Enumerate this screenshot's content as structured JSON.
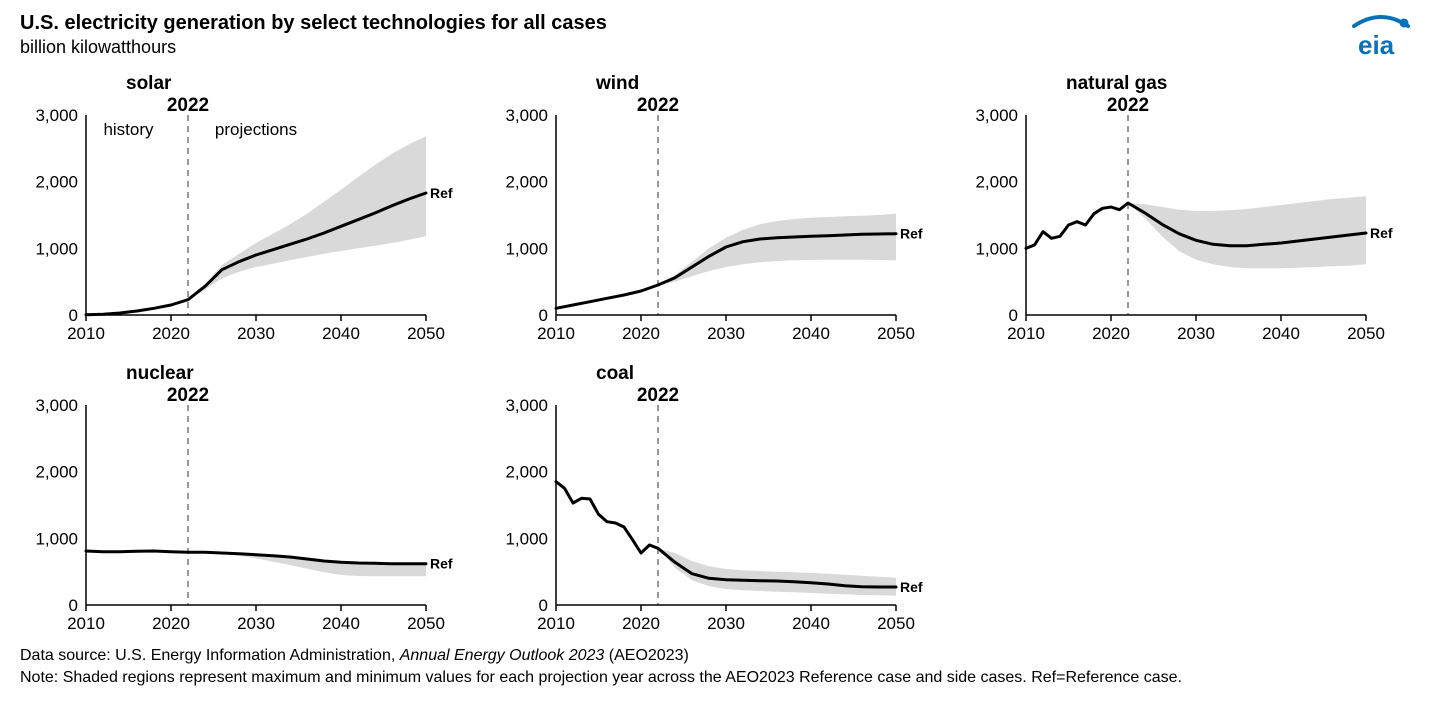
{
  "title": "U.S. electricity generation by select technologies for all cases",
  "subtitle": "billion kilowatthours",
  "source_prefix": "Data source: U.S. Energy Information Administration, ",
  "source_italic": "Annual Energy Outlook 2023",
  "source_suffix": " (AEO2023)",
  "note": "Note: Shaded regions represent maximum and minimum values for each projection year across the AEO2023 Reference case and side cases. Ref=Reference case.",
  "logo_text": "eia",
  "logo_color": "#0a70b8",
  "common": {
    "y_min": 0,
    "y_max": 3000,
    "y_ticks": [
      0,
      1000,
      2000,
      3000
    ],
    "y_tick_labels": [
      "0",
      "1,000",
      "2,000",
      "3,000"
    ],
    "x_min": 2010,
    "x_max": 2050,
    "x_ticks": [
      2010,
      2020,
      2030,
      2040,
      2050
    ],
    "marker_year": 2022,
    "marker_label": "2022",
    "ref_label": "Ref",
    "history_label": "history",
    "projections_label": "projections",
    "line_color": "#000000",
    "line_width": 3,
    "band_color": "#d9d9d9",
    "band_opacity": 1.0,
    "axis_color": "#000000",
    "axis_width": 1.5,
    "marker_color": "#999999",
    "marker_width": 2,
    "marker_dash": "6,5",
    "tick_font_size": 17,
    "title_font_size": 19,
    "panel_title_weight": "bold",
    "background_color": "#ffffff"
  },
  "panels": [
    {
      "id": "solar",
      "title": "solar",
      "show_hp_labels": true,
      "ref": {
        "x": [
          2010,
          2012,
          2014,
          2016,
          2018,
          2020,
          2022,
          2024,
          2026,
          2028,
          2030,
          2032,
          2034,
          2036,
          2038,
          2040,
          2042,
          2044,
          2046,
          2048,
          2050
        ],
        "y": [
          5,
          10,
          30,
          60,
          100,
          150,
          230,
          430,
          680,
          800,
          900,
          980,
          1060,
          1140,
          1230,
          1330,
          1430,
          1530,
          1640,
          1740,
          1830
        ]
      },
      "hi": {
        "x": [
          2022,
          2024,
          2026,
          2028,
          2030,
          2032,
          2034,
          2036,
          2038,
          2040,
          2042,
          2044,
          2046,
          2048,
          2050
        ],
        "y": [
          230,
          460,
          750,
          920,
          1080,
          1220,
          1360,
          1520,
          1700,
          1880,
          2070,
          2250,
          2420,
          2560,
          2680
        ]
      },
      "lo": {
        "x": [
          2022,
          2024,
          2026,
          2028,
          2030,
          2032,
          2034,
          2036,
          2038,
          2040,
          2042,
          2044,
          2046,
          2048,
          2050
        ],
        "y": [
          230,
          380,
          550,
          650,
          720,
          770,
          820,
          870,
          920,
          960,
          1000,
          1040,
          1080,
          1130,
          1180
        ]
      }
    },
    {
      "id": "wind",
      "title": "wind",
      "show_hp_labels": false,
      "ref": {
        "x": [
          2010,
          2012,
          2014,
          2016,
          2018,
          2020,
          2022,
          2024,
          2026,
          2028,
          2030,
          2032,
          2034,
          2036,
          2038,
          2040,
          2042,
          2044,
          2046,
          2048,
          2050
        ],
        "y": [
          100,
          150,
          200,
          250,
          300,
          360,
          450,
          560,
          720,
          880,
          1020,
          1100,
          1140,
          1160,
          1170,
          1180,
          1190,
          1200,
          1210,
          1215,
          1220
        ]
      },
      "hi": {
        "x": [
          2022,
          2024,
          2026,
          2028,
          2030,
          2032,
          2034,
          2036,
          2038,
          2040,
          2042,
          2044,
          2046,
          2048,
          2050
        ],
        "y": [
          450,
          600,
          800,
          1000,
          1160,
          1280,
          1360,
          1410,
          1440,
          1460,
          1470,
          1480,
          1490,
          1500,
          1520
        ]
      },
      "lo": {
        "x": [
          2022,
          2024,
          2026,
          2028,
          2030,
          2032,
          2034,
          2036,
          2038,
          2040,
          2042,
          2044,
          2046,
          2048,
          2050
        ],
        "y": [
          450,
          500,
          580,
          660,
          720,
          760,
          790,
          810,
          820,
          825,
          830,
          830,
          830,
          825,
          820
        ]
      }
    },
    {
      "id": "natgas",
      "title": "natural gas",
      "show_hp_labels": false,
      "ref": {
        "x": [
          2010,
          2011,
          2012,
          2013,
          2014,
          2015,
          2016,
          2017,
          2018,
          2019,
          2020,
          2021,
          2022,
          2024,
          2026,
          2028,
          2030,
          2032,
          2034,
          2036,
          2038,
          2040,
          2042,
          2044,
          2046,
          2048,
          2050
        ],
        "y": [
          1000,
          1050,
          1250,
          1150,
          1180,
          1350,
          1400,
          1350,
          1520,
          1600,
          1620,
          1580,
          1680,
          1530,
          1360,
          1220,
          1120,
          1060,
          1040,
          1040,
          1060,
          1080,
          1110,
          1140,
          1170,
          1200,
          1230
        ]
      },
      "hi": {
        "x": [
          2022,
          2024,
          2026,
          2028,
          2030,
          2032,
          2034,
          2036,
          2038,
          2040,
          2042,
          2044,
          2046,
          2048,
          2050
        ],
        "y": [
          1680,
          1660,
          1620,
          1580,
          1560,
          1560,
          1570,
          1590,
          1620,
          1650,
          1680,
          1710,
          1740,
          1760,
          1780
        ]
      },
      "lo": {
        "x": [
          2022,
          2024,
          2026,
          2028,
          2030,
          2032,
          2034,
          2036,
          2038,
          2040,
          2042,
          2044,
          2046,
          2048,
          2050
        ],
        "y": [
          1680,
          1450,
          1180,
          960,
          830,
          760,
          720,
          700,
          700,
          700,
          710,
          720,
          730,
          740,
          760
        ]
      }
    },
    {
      "id": "nuclear",
      "title": "nuclear",
      "show_hp_labels": false,
      "ref": {
        "x": [
          2010,
          2012,
          2014,
          2016,
          2018,
          2020,
          2022,
          2024,
          2026,
          2028,
          2030,
          2032,
          2034,
          2036,
          2038,
          2040,
          2042,
          2044,
          2046,
          2048,
          2050
        ],
        "y": [
          810,
          800,
          800,
          805,
          810,
          800,
          790,
          790,
          780,
          770,
          755,
          740,
          720,
          690,
          660,
          640,
          630,
          625,
          620,
          620,
          620
        ]
      },
      "hi": {
        "x": [
          2022,
          2024,
          2026,
          2028,
          2030,
          2032,
          2034,
          2036,
          2038,
          2040,
          2042,
          2044,
          2046,
          2048,
          2050
        ],
        "y": [
          790,
          790,
          785,
          780,
          770,
          755,
          735,
          705,
          675,
          655,
          645,
          640,
          635,
          632,
          630
        ]
      },
      "lo": {
        "x": [
          2022,
          2024,
          2026,
          2028,
          2030,
          2032,
          2034,
          2036,
          2038,
          2040,
          2042,
          2044,
          2046,
          2048,
          2050
        ],
        "y": [
          790,
          785,
          770,
          740,
          700,
          650,
          600,
          545,
          490,
          450,
          435,
          430,
          430,
          430,
          430
        ]
      }
    },
    {
      "id": "coal",
      "title": "coal",
      "show_hp_labels": false,
      "ref": {
        "x": [
          2010,
          2011,
          2012,
          2013,
          2014,
          2015,
          2016,
          2017,
          2018,
          2019,
          2020,
          2021,
          2022,
          2024,
          2026,
          2028,
          2030,
          2032,
          2034,
          2036,
          2038,
          2040,
          2042,
          2044,
          2046,
          2048,
          2050
        ],
        "y": [
          1850,
          1750,
          1530,
          1600,
          1590,
          1360,
          1250,
          1230,
          1170,
          980,
          780,
          900,
          850,
          640,
          470,
          400,
          380,
          370,
          365,
          360,
          350,
          335,
          315,
          290,
          275,
          270,
          270
        ]
      },
      "hi": {
        "x": [
          2022,
          2024,
          2026,
          2028,
          2030,
          2032,
          2034,
          2036,
          2038,
          2040,
          2042,
          2044,
          2046,
          2048,
          2050
        ],
        "y": [
          850,
          780,
          660,
          580,
          540,
          520,
          510,
          500,
          490,
          480,
          470,
          455,
          440,
          425,
          410
        ]
      },
      "lo": {
        "x": [
          2022,
          2024,
          2026,
          2028,
          2030,
          2032,
          2034,
          2036,
          2038,
          2040,
          2042,
          2044,
          2046,
          2048,
          2050
        ],
        "y": [
          850,
          560,
          370,
          280,
          240,
          220,
          210,
          200,
          190,
          180,
          170,
          160,
          150,
          145,
          140
        ]
      }
    }
  ]
}
